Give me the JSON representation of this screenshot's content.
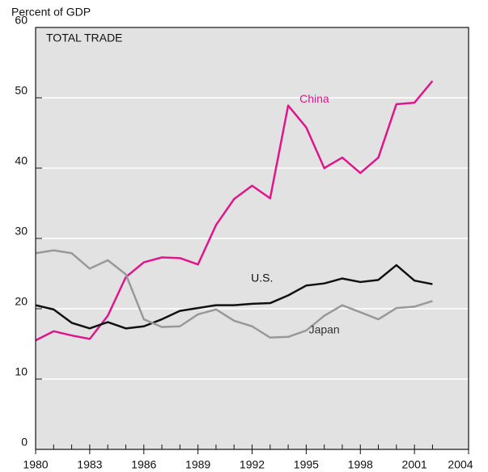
{
  "chart_data": {
    "type": "line",
    "title": "TOTAL TRADE",
    "y_label": "Percent of GDP",
    "x": [
      1980,
      1981,
      1982,
      1983,
      1984,
      1985,
      1986,
      1987,
      1988,
      1989,
      1990,
      1991,
      1992,
      1993,
      1994,
      1995,
      1996,
      1997,
      1998,
      1999,
      2000,
      2001,
      2002
    ],
    "series": [
      {
        "name": "China",
        "color": "#e0168c",
        "values": [
          15.5,
          16.8,
          16.2,
          15.7,
          19,
          24.5,
          26.6,
          27.3,
          27.2,
          26.3,
          31.9,
          35.6,
          37.5,
          35.7,
          48.9,
          45.8,
          40,
          41.5,
          39.3,
          41.5,
          49.1,
          49.3,
          52.4
        ]
      },
      {
        "name": "U.S.",
        "color": "#111111",
        "values": [
          20.5,
          19.9,
          18,
          17.2,
          18.1,
          17.2,
          17.5,
          18.5,
          19.7,
          20.1,
          20.5,
          20.5,
          20.7,
          20.8,
          21.9,
          23.3,
          23.6,
          24.3,
          23.8,
          24.1,
          26.2,
          24,
          23.5
        ]
      },
      {
        "name": "Japan",
        "color": "#999999",
        "values": [
          27.9,
          28.3,
          27.9,
          25.7,
          26.9,
          24.9,
          18.5,
          17.4,
          17.5,
          19.2,
          19.9,
          18.3,
          17.5,
          15.9,
          16,
          16.9,
          19,
          20.5,
          19.5,
          18.5,
          20.1,
          20.3,
          21.1
        ]
      }
    ],
    "xlim": [
      1980,
      2004
    ],
    "xticks": [
      1980,
      1983,
      1986,
      1989,
      1992,
      1995,
      1998,
      2001,
      2004
    ],
    "ylim": [
      0,
      60
    ],
    "yticks": [
      0,
      10,
      20,
      30,
      40,
      50,
      60
    ],
    "grid": true
  }
}
